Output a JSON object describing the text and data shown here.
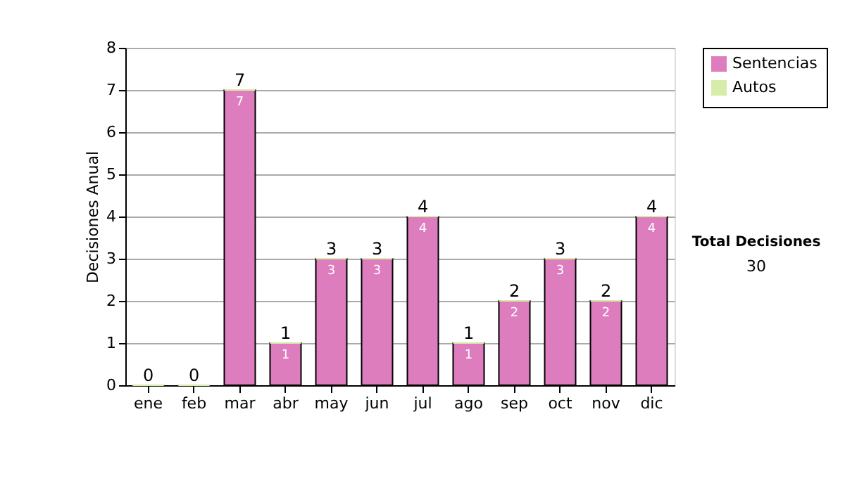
{
  "chart_data": {
    "type": "bar",
    "stacked": true,
    "ylabel": "Decisiones Anual",
    "categories": [
      "ene",
      "feb",
      "mar",
      "abr",
      "may",
      "jun",
      "jul",
      "ago",
      "sep",
      "oct",
      "nov",
      "dic"
    ],
    "series": [
      {
        "name": "Sentencias",
        "color": "#dd7dbe",
        "values": [
          0,
          0,
          7,
          1,
          3,
          3,
          4,
          1,
          2,
          3,
          2,
          4
        ],
        "value_labels": [
          null,
          null,
          "7",
          "1",
          "3",
          "3",
          "4",
          "1",
          "2",
          "3",
          "2",
          "4"
        ]
      },
      {
        "name": "Autos",
        "color": "#d6eca8",
        "values": [
          0,
          0,
          0,
          0,
          0,
          0,
          0,
          0,
          0,
          0,
          0,
          0
        ]
      }
    ],
    "totals": [
      "0",
      "0",
      "7",
      "1",
      "3",
      "3",
      "4",
      "1",
      "2",
      "3",
      "2",
      "4"
    ],
    "ylim": [
      0,
      8
    ],
    "yticks": [
      0,
      1,
      2,
      3,
      4,
      5,
      6,
      7,
      8
    ],
    "grid": "y",
    "legend": "right",
    "annotations": [
      "Total Decisiones",
      "30"
    ]
  }
}
